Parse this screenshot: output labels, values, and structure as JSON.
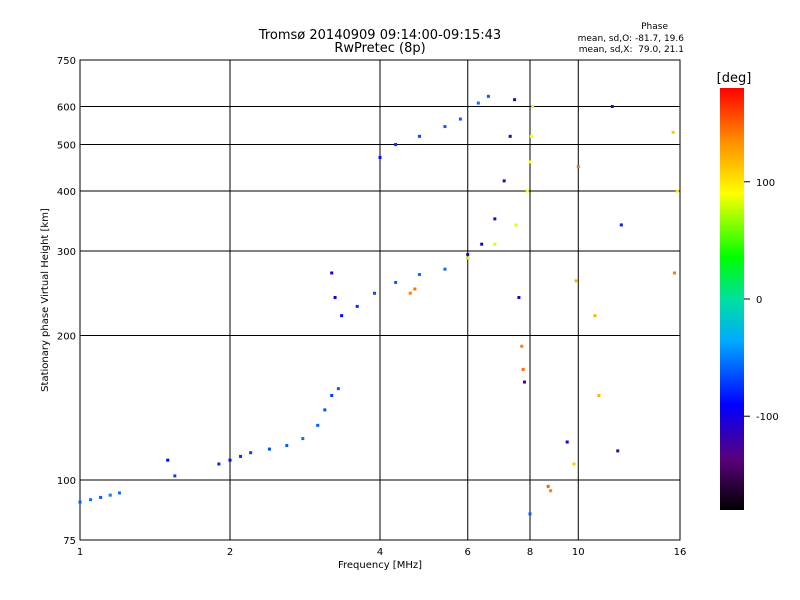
{
  "chart_data": {
    "type": "scatter",
    "title": "Tromsø 20140909 09:14:00-09:15:43",
    "subtitle": "RwPretec (8p)",
    "xlabel": "Frequency [MHz]",
    "ylabel": "Stationary phase Virtual Height [km]",
    "x_scale": "log",
    "y_scale": "log",
    "xlim": [
      1,
      16
    ],
    "ylim": [
      75,
      750
    ],
    "x_ticks": [
      1,
      2,
      4,
      6,
      8,
      10,
      16
    ],
    "y_ticks": [
      75,
      100,
      200,
      300,
      400,
      500,
      600,
      750
    ],
    "grid": true,
    "stats": {
      "heading": "Phase",
      "line_o": "mean, sd,O: -81.7, 19.6",
      "line_x": "mean, sd,X:  79.0, 21.1"
    },
    "colorbar": {
      "label": "[deg]",
      "range": [
        -180,
        180
      ],
      "ticks": [
        100,
        0,
        -100
      ]
    },
    "series": [
      {
        "points": [
          [
            1.0,
            90,
            -60
          ],
          [
            1.05,
            91,
            -55
          ],
          [
            1.1,
            92,
            -60
          ],
          [
            1.15,
            93,
            -50
          ],
          [
            1.2,
            94,
            -55
          ]
        ]
      },
      {
        "points": [
          [
            1.5,
            110,
            -90
          ],
          [
            1.55,
            102,
            -70
          ]
        ]
      },
      {
        "points": [
          [
            1.9,
            108,
            -80
          ],
          [
            2.0,
            110,
            -85
          ],
          [
            2.1,
            112,
            -75
          ],
          [
            2.2,
            114,
            -70
          ],
          [
            2.4,
            116,
            -65
          ],
          [
            2.6,
            118,
            -60
          ],
          [
            2.8,
            122,
            -55
          ],
          [
            3.0,
            130,
            -60
          ],
          [
            3.1,
            140,
            -65
          ],
          [
            3.2,
            150,
            -70
          ],
          [
            3.3,
            155,
            -60
          ]
        ]
      },
      {
        "points": [
          [
            3.2,
            270,
            -100
          ],
          [
            3.25,
            240,
            -95
          ],
          [
            3.35,
            220,
            -90
          ],
          [
            3.6,
            230,
            -75
          ],
          [
            3.9,
            245,
            -65
          ],
          [
            4.3,
            258,
            -60
          ],
          [
            4.8,
            268,
            -55
          ],
          [
            5.4,
            275,
            -55
          ],
          [
            6.0,
            290,
            -60
          ]
        ]
      },
      {
        "points": [
          [
            4.6,
            245,
            140
          ],
          [
            4.7,
            250,
            145
          ]
        ]
      },
      {
        "points": [
          [
            4.0,
            470,
            -85
          ],
          [
            4.3,
            500,
            -75
          ],
          [
            4.8,
            520,
            -65
          ],
          [
            5.4,
            545,
            -60
          ],
          [
            5.8,
            565,
            -58
          ],
          [
            6.3,
            610,
            -55
          ],
          [
            6.6,
            630,
            -60
          ]
        ]
      },
      {
        "points": [
          [
            6.0,
            295,
            -110
          ],
          [
            6.4,
            310,
            -115
          ],
          [
            6.8,
            350,
            -118
          ],
          [
            7.1,
            420,
            -120
          ],
          [
            7.3,
            520,
            -120
          ],
          [
            7.45,
            620,
            -120
          ]
        ]
      },
      {
        "points": [
          [
            6.0,
            290,
            80
          ],
          [
            6.8,
            310,
            82
          ],
          [
            7.5,
            340,
            85
          ],
          [
            7.9,
            400,
            88
          ],
          [
            8.0,
            460,
            90
          ],
          [
            8.05,
            520,
            88
          ],
          [
            8.1,
            600,
            95
          ]
        ]
      },
      {
        "points": [
          [
            7.6,
            240,
            -110
          ],
          [
            7.7,
            190,
            140
          ],
          [
            7.75,
            170,
            145
          ],
          [
            7.8,
            160,
            -130
          ],
          [
            8.0,
            85,
            -60
          ],
          [
            8.7,
            97,
            150
          ],
          [
            8.8,
            95,
            140
          ],
          [
            9.5,
            120,
            -100
          ],
          [
            9.8,
            108,
            110
          ],
          [
            9.9,
            260,
            120
          ],
          [
            10.0,
            450,
            145
          ],
          [
            10.8,
            220,
            120
          ],
          [
            11.0,
            150,
            120
          ],
          [
            12.2,
            340,
            -80
          ],
          [
            12.0,
            115,
            -120
          ],
          [
            11.7,
            600,
            -120
          ],
          [
            15.5,
            530,
            110
          ],
          [
            15.6,
            270,
            140
          ],
          [
            15.8,
            400,
            100
          ]
        ]
      }
    ]
  }
}
